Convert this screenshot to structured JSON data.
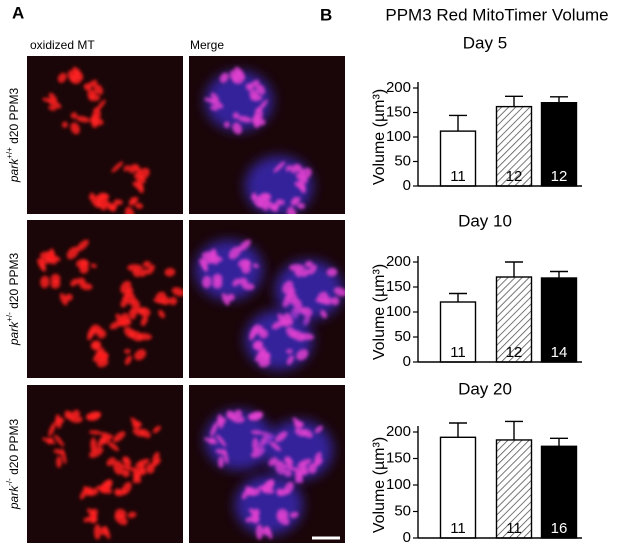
{
  "panel_a": {
    "label": "A",
    "columns": [
      "oxidized MT",
      "Merge"
    ],
    "rows": [
      {
        "gene": "park",
        "genotype": "+/+",
        "rest": "d20 PPM3"
      },
      {
        "gene": "park",
        "genotype": "+/-",
        "rest": "d20 PPM3"
      },
      {
        "gene": "park",
        "genotype": "-/-",
        "rest": "d20 PPM3"
      }
    ]
  },
  "panel_b": {
    "label": "B",
    "title": "PPM3 Red MitoTimer Volume"
  },
  "chart_data": [
    {
      "type": "bar",
      "title": "Day 5",
      "ylabel": "Volume (µm³)",
      "values": [
        112,
        162,
        170
      ],
      "errors": [
        32,
        21,
        12
      ],
      "n": [
        11,
        12,
        12
      ],
      "colors": [
        "#ffffff",
        "#ffffff",
        "#000000"
      ],
      "hatch": [
        false,
        true,
        false
      ],
      "ylim": [
        0,
        200
      ],
      "yticks": [
        0,
        50,
        100,
        150,
        200
      ]
    },
    {
      "type": "bar",
      "title": "Day 10",
      "ylabel": "Volume (µm³)",
      "values": [
        120,
        170,
        168
      ],
      "errors": [
        17,
        30,
        13
      ],
      "n": [
        11,
        12,
        14
      ],
      "colors": [
        "#ffffff",
        "#ffffff",
        "#000000"
      ],
      "hatch": [
        false,
        true,
        false
      ],
      "ylim": [
        0,
        200
      ],
      "yticks": [
        0,
        50,
        100,
        150,
        200
      ]
    },
    {
      "type": "bar",
      "title": "Day 20",
      "ylabel": "Volume (µm³)",
      "values": [
        190,
        185,
        173
      ],
      "errors": [
        27,
        35,
        15
      ],
      "n": [
        11,
        11,
        16
      ],
      "colors": [
        "#ffffff",
        "#ffffff",
        "#000000"
      ],
      "hatch": [
        false,
        true,
        false
      ],
      "ylim": [
        0,
        200
      ],
      "yticks": [
        0,
        50,
        100,
        150,
        200
      ]
    }
  ]
}
